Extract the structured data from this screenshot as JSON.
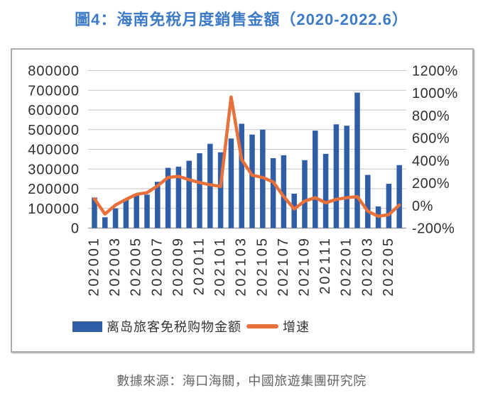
{
  "page": {
    "title": "圖4：海南免稅月度銷售金額（2020-2022.6）",
    "source_note": "數據來源：海口海關，中國旅遊集團研究院"
  },
  "colors": {
    "title": "#3E7BC7",
    "bar": "#2F5DA6",
    "line": "#E7703B",
    "grid": "#C6C6C6",
    "axis_line": "#9B9B9B",
    "axis_text": "#303030",
    "source_text": "#666666",
    "frame_border": "#ABABAB"
  },
  "chart_data": {
    "type": "bar+line",
    "title": "圖4：海南免稅月度銷售金額（2020-2022.6）",
    "categories": [
      "202001",
      "202002",
      "202003",
      "202004",
      "202005",
      "202006",
      "202007",
      "202008",
      "202009",
      "202010",
      "202011",
      "202012",
      "202101",
      "202102",
      "202103",
      "202104",
      "202105",
      "202106",
      "202107",
      "202108",
      "202109",
      "202110",
      "202111",
      "202112",
      "202201",
      "202202",
      "202203",
      "202204",
      "202205",
      "202206"
    ],
    "series": [
      {
        "name": "离岛旅客免税购物金额",
        "type": "bar",
        "yaxis": "left",
        "values": [
          155000,
          55000,
          100000,
          148000,
          168000,
          170000,
          235000,
          306000,
          312000,
          342000,
          380000,
          428000,
          385000,
          455000,
          530000,
          475000,
          500000,
          355000,
          370000,
          175000,
          345000,
          495000,
          377000,
          527000,
          520000,
          688000,
          270000,
          110000,
          225000,
          320000
        ]
      },
      {
        "name": "增速",
        "type": "line",
        "yaxis": "right",
        "values": [
          60,
          -75,
          5,
          55,
          100,
          115,
          175,
          250,
          260,
          230,
          205,
          185,
          170,
          965,
          410,
          270,
          250,
          210,
          80,
          -30,
          40,
          70,
          25,
          55,
          70,
          80,
          -50,
          -95,
          -80,
          5
        ]
      }
    ],
    "left_axis": {
      "min": 0,
      "max": 800000,
      "step": 100000,
      "tick_labels": [
        "800000",
        "700000",
        "600000",
        "500000",
        "400000",
        "300000",
        "200000",
        "100000",
        "0"
      ]
    },
    "right_axis": {
      "min": -200,
      "max": 1200,
      "step": 200,
      "tick_labels": [
        "1200%",
        "1000%",
        "800%",
        "600%",
        "400%",
        "200%",
        "0%",
        "-200%"
      ]
    },
    "x_tick_labels": [
      "202001",
      "202003",
      "202005",
      "202007",
      "202009",
      "202011",
      "202101",
      "202103",
      "202105",
      "202107",
      "202109",
      "202111",
      "202201",
      "202203",
      "202205"
    ],
    "legend_position": "bottom",
    "gridlines": "horizontal"
  }
}
